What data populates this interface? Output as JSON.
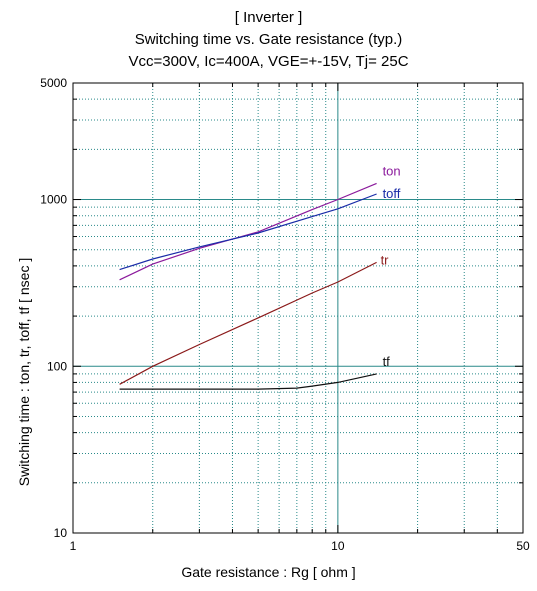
{
  "titles": {
    "line1": "[ Inverter ]",
    "line2": "Switching time  vs.  Gate resistance  (typ.)",
    "line3": "Vcc=300V, Ic=400A, VGE=+-15V, Tj= 25C"
  },
  "chart_data": {
    "type": "line",
    "xlabel": "Gate resistance  :  Rg  [ ohm ]",
    "ylabel": "Switching time  :  ton, tr, toff, tf  [ nsec ]",
    "xscale": "log",
    "yscale": "log",
    "xlim": [
      1,
      50
    ],
    "ylim": [
      10,
      5000
    ],
    "x_ticks": [
      {
        "value": 1,
        "label": "1"
      },
      {
        "value": 10,
        "label": "10"
      },
      {
        "value": 50,
        "label": "50"
      }
    ],
    "y_ticks": [
      {
        "value": 10,
        "label": "10"
      },
      {
        "value": 100,
        "label": "100"
      },
      {
        "value": 1000,
        "label": "1000"
      },
      {
        "value": 5000,
        "label": "5000"
      }
    ],
    "grid": true,
    "series": [
      {
        "name": "ton",
        "color": "#8b1a9c",
        "x": [
          1.5,
          2,
          3,
          5,
          8,
          10,
          14
        ],
        "y": [
          330,
          410,
          510,
          640,
          870,
          1000,
          1250
        ]
      },
      {
        "name": "toff",
        "color": "#1a2ca8",
        "x": [
          1.5,
          2,
          3,
          5,
          8,
          10,
          14
        ],
        "y": [
          380,
          440,
          520,
          630,
          790,
          880,
          1080
        ]
      },
      {
        "name": "tr",
        "color": "#8b1a1a",
        "x": [
          1.5,
          2,
          3,
          5,
          8,
          10,
          14
        ],
        "y": [
          78,
          100,
          135,
          195,
          275,
          320,
          420
        ]
      },
      {
        "name": "tf",
        "color": "#111111",
        "x": [
          1.5,
          2,
          3,
          5,
          7,
          8,
          10,
          14
        ],
        "y": [
          73,
          73,
          73,
          73,
          74,
          76,
          80,
          90
        ]
      }
    ]
  }
}
